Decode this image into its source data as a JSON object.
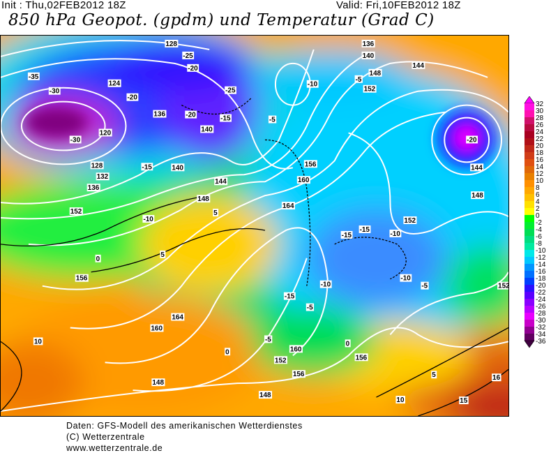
{
  "header": {
    "init": "Init : Thu,02FEB2012 18Z",
    "valid": "Valid: Fri,10FEB2012 18Z",
    "title": "850 hPa Geopot. (gpdm) und Temperatur (Grad C)"
  },
  "colorbar": {
    "labels": [
      "32",
      "30",
      "28",
      "26",
      "24",
      "22",
      "20",
      "18",
      "16",
      "14",
      "12",
      "10",
      "8",
      "6",
      "4",
      "2",
      "0",
      "-2",
      "-4",
      "-6",
      "-8",
      "-10",
      "-12",
      "-14",
      "-16",
      "-18",
      "-20",
      "-22",
      "-24",
      "-26",
      "-28",
      "-30",
      "-32",
      "-34",
      "-36"
    ],
    "colors": [
      "#ff00ff",
      "#ff10e0",
      "#ff10b0",
      "#d0106a",
      "#b80a40",
      "#a80020",
      "#b01018",
      "#c02818",
      "#d03c18",
      "#e05010",
      "#e06808",
      "#e88000",
      "#ff9000",
      "#ffa800",
      "#ffc000",
      "#ffe000",
      "#ffff00",
      "#00ff00",
      "#00ee30",
      "#00dd55",
      "#00dd80",
      "#00eaa0",
      "#00e8e8",
      "#00c8ff",
      "#0096ff",
      "#0070ff",
      "#0040ff",
      "#2a10ff",
      "#5a00ff",
      "#8a00ff",
      "#b800ff",
      "#e800ff",
      "#c800c8",
      "#900090",
      "#600060",
      "#400040"
    ]
  },
  "map": {
    "geopotential_labels": [
      "128",
      "136",
      "140",
      "144",
      "148",
      "152",
      "156",
      "160",
      "164",
      "124",
      "120",
      "128",
      "132",
      "136",
      "140",
      "144",
      "148",
      "152",
      "156",
      "160",
      "164",
      "156",
      "152",
      "148",
      "148",
      "152",
      "156",
      "160",
      "136",
      "140",
      "144",
      "148",
      "152"
    ],
    "temperature_labels": [
      "-35",
      "-30",
      "-25",
      "-20",
      "-15",
      "-10",
      "-5",
      "0",
      "5",
      "10",
      "15",
      "-25",
      "-20",
      "-15",
      "-10",
      "-5",
      "-30",
      "-20",
      "-15",
      "-10",
      "-5",
      "-15",
      "-15",
      "-10",
      "-5",
      "0",
      "5",
      "10",
      "15",
      "16",
      "5",
      "0",
      "-5",
      "-10",
      "-20"
    ]
  },
  "footer": {
    "line1": "Daten: GFS-Modell des amerikanischen Wetterdienstes",
    "line2": "(C) Wetterzentrale",
    "line3": "www.wetterzentrale.de"
  }
}
